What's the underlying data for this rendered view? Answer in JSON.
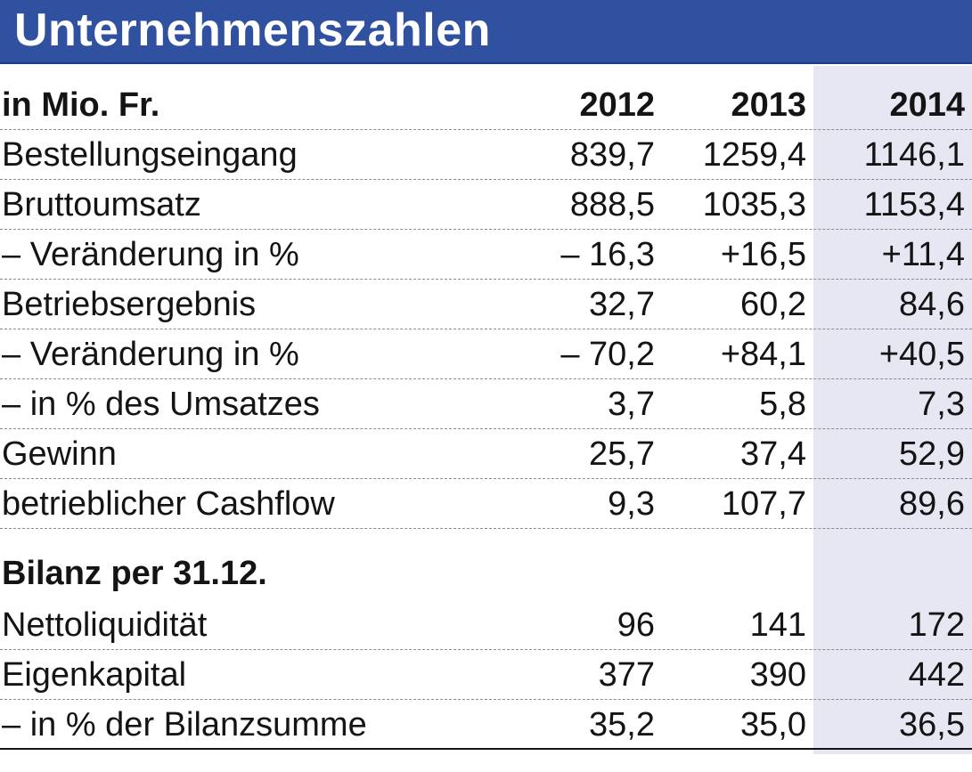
{
  "chart_data": {
    "type": "table",
    "title": "Unternehmenszahlen",
    "unit_label": "in Mio. Fr.",
    "years": [
      "2012",
      "2013",
      "2014"
    ],
    "highlight_year": "2014",
    "colors": {
      "title_bar": "#3050a0",
      "title_text": "#ffffff",
      "highlight_column": "#e7e7f3"
    },
    "rows": [
      {
        "label": "Bestellungseingang",
        "values": [
          "839,7",
          "1259,4",
          "1146,1"
        ]
      },
      {
        "label": "Bruttoumsatz",
        "values": [
          "888,5",
          "1035,3",
          "1153,4"
        ]
      },
      {
        "label": "– Veränderung in %",
        "values": [
          "– 16,3",
          "+16,5",
          "+11,4"
        ]
      },
      {
        "label": "Betriebsergebnis",
        "values": [
          "32,7",
          "60,2",
          "84,6"
        ]
      },
      {
        "label": "– Veränderung in %",
        "values": [
          "– 70,2",
          "+84,1",
          "+40,5"
        ]
      },
      {
        "label": "– in % des Umsatzes",
        "values": [
          "3,7",
          "5,8",
          "7,3"
        ]
      },
      {
        "label": "Gewinn",
        "values": [
          "25,7",
          "37,4",
          "52,9"
        ]
      },
      {
        "label": "betrieblicher Cashflow",
        "values": [
          "9,3",
          "107,7",
          "89,6"
        ]
      }
    ],
    "section": {
      "title": "Bilanz per 31.12.",
      "rows": [
        {
          "label": "Nettoliquidität",
          "values": [
            "96",
            "141",
            "172"
          ]
        },
        {
          "label": "Eigenkapital",
          "values": [
            "377",
            "390",
            "442"
          ]
        },
        {
          "label": "– in % der Bilanzsumme",
          "values": [
            "35,2",
            "35,0",
            "36,5"
          ]
        }
      ]
    }
  }
}
